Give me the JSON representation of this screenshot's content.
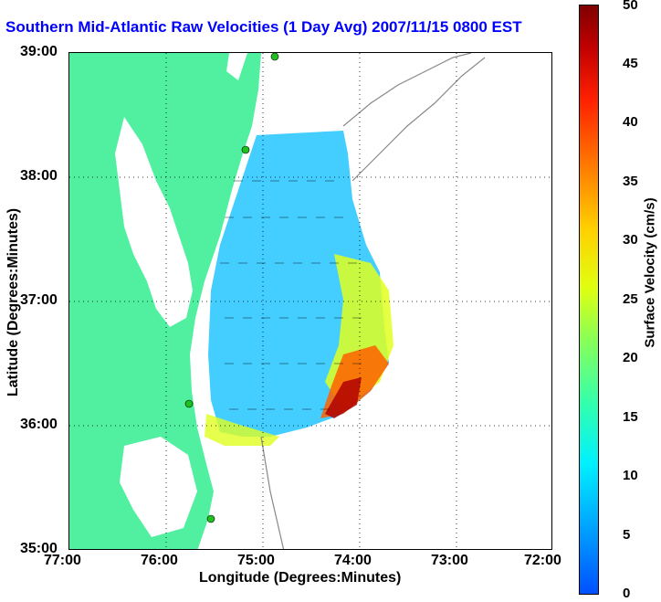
{
  "title": "Southern Mid-Atlantic Raw Velocities (1 Day Avg) 2007/11/15 0800 EST",
  "xlabel": "Longitude (Degrees:Minutes)",
  "ylabel": "Latitude (Degrees:Minutes)",
  "x_ticks": [
    "77:00",
    "76:00",
    "75:00",
    "74:00",
    "73:00",
    "72:00"
  ],
  "y_ticks": [
    "39:00",
    "38:00",
    "37:00",
    "36:00",
    "35:00"
  ],
  "colorbar": {
    "label": "Surface Velocity (cm/s)",
    "ticks": [
      "0",
      "5",
      "10",
      "15",
      "20",
      "25",
      "30",
      "35",
      "40",
      "45",
      "50"
    ]
  },
  "colors": {
    "land": "#50f0a0",
    "title": "#0000ff",
    "site": "#20c020"
  }
}
